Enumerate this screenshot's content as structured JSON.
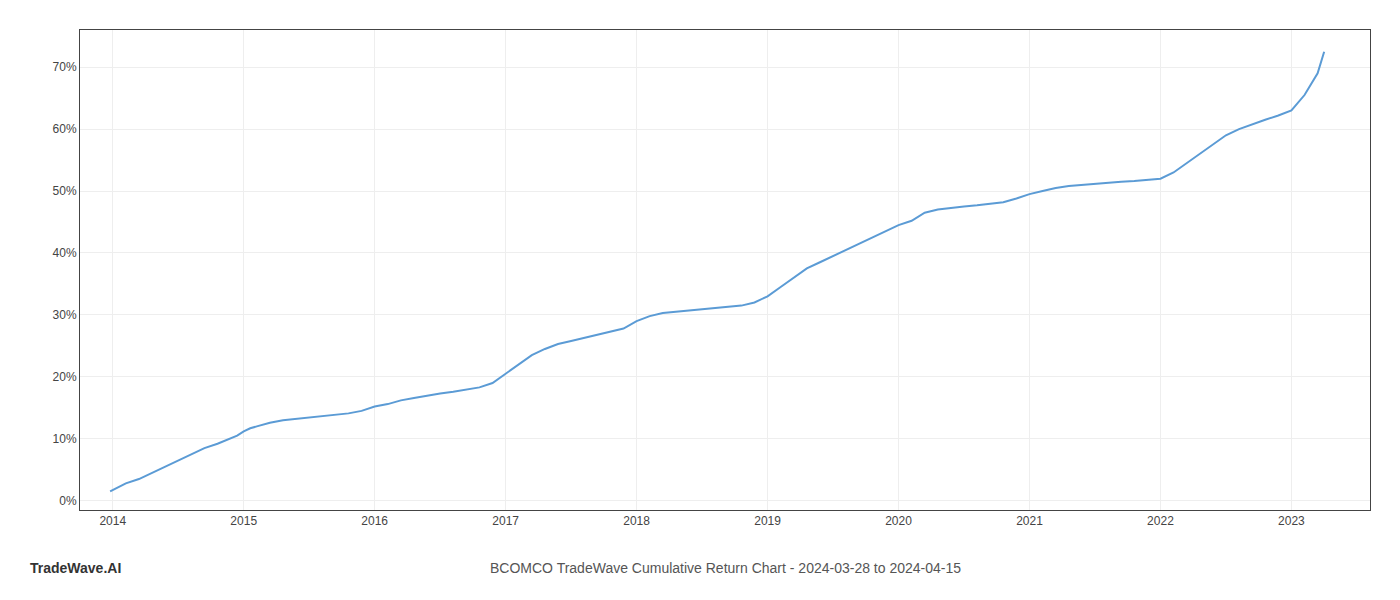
{
  "chart_data": {
    "type": "line",
    "title": "BCOMCO TradeWave Cumulative Return Chart - 2024-03-28 to 2024-04-15",
    "annotations": [
      "TradeWave.AI"
    ],
    "color": "#5b9bd5",
    "grid": true,
    "xlim": [
      2013.75,
      2023.6
    ],
    "xticks": [
      2014,
      2015,
      2016,
      2017,
      2018,
      2019,
      2020,
      2021,
      2022,
      2023
    ],
    "ylim": [
      -1.5,
      76
    ],
    "yticks": [
      {
        "value": 0,
        "label": "0%"
      },
      {
        "value": 10,
        "label": "10%"
      },
      {
        "value": 20,
        "label": "20%"
      },
      {
        "value": 30,
        "label": "30%"
      },
      {
        "value": 40,
        "label": "40%"
      },
      {
        "value": 50,
        "label": "50%"
      },
      {
        "value": 60,
        "label": "60%"
      },
      {
        "value": 70,
        "label": "70%"
      }
    ],
    "x": [
      2013.98,
      2014.05,
      2014.1,
      2014.2,
      2014.3,
      2014.4,
      2014.5,
      2014.6,
      2014.7,
      2014.8,
      2014.9,
      2014.95,
      2015.0,
      2015.05,
      2015.1,
      2015.15,
      2015.2,
      2015.3,
      2015.4,
      2015.5,
      2015.6,
      2015.7,
      2015.8,
      2015.9,
      2015.95,
      2016.0,
      2016.1,
      2016.2,
      2016.3,
      2016.4,
      2016.5,
      2016.6,
      2016.7,
      2016.8,
      2016.9,
      2017.0,
      2017.1,
      2017.2,
      2017.3,
      2017.4,
      2017.5,
      2017.6,
      2017.7,
      2017.8,
      2017.9,
      2018.0,
      2018.1,
      2018.2,
      2018.3,
      2018.4,
      2018.5,
      2018.6,
      2018.7,
      2018.8,
      2018.9,
      2019.0,
      2019.1,
      2019.2,
      2019.3,
      2019.4,
      2019.5,
      2019.6,
      2019.7,
      2019.8,
      2019.9,
      2020.0,
      2020.1,
      2020.2,
      2020.3,
      2020.4,
      2020.5,
      2020.6,
      2020.7,
      2020.8,
      2020.9,
      2021.0,
      2021.1,
      2021.2,
      2021.3,
      2021.4,
      2021.5,
      2021.6,
      2021.7,
      2021.8,
      2021.9,
      2022.0,
      2022.1,
      2022.2,
      2022.3,
      2022.4,
      2022.5,
      2022.6,
      2022.7,
      2022.8,
      2022.9,
      2023.0,
      2023.1,
      2023.2,
      2023.25
    ],
    "values": [
      1.5,
      2.2,
      2.8,
      3.5,
      4.5,
      5.5,
      6.5,
      7.5,
      8.5,
      9.2,
      10.0,
      10.5,
      11.2,
      11.7,
      12.0,
      12.3,
      12.6,
      13.0,
      13.2,
      13.4,
      13.6,
      13.8,
      14.1,
      14.5,
      14.8,
      15.2,
      15.6,
      16.2,
      16.6,
      17.0,
      17.3,
      17.6,
      17.9,
      18.3,
      19.0,
      20.5,
      22.0,
      23.5,
      24.5,
      25.3,
      25.8,
      26.3,
      26.7,
      27.2,
      27.8,
      29.0,
      29.8,
      30.3,
      30.5,
      30.7,
      30.9,
      31.0,
      31.2,
      31.5,
      32.0,
      33.0,
      34.5,
      36.0,
      37.5,
      38.5,
      39.5,
      40.5,
      41.5,
      42.5,
      43.5,
      44.5,
      45.2,
      46.5,
      47.0,
      47.3,
      47.5,
      47.7,
      47.9,
      48.2,
      48.8,
      49.5,
      50.0,
      50.5,
      50.8,
      51.0,
      51.2,
      51.4,
      51.5,
      51.6,
      51.8,
      52.0,
      53.0,
      54.5,
      56.0,
      57.5,
      59.0,
      60.0,
      60.8,
      61.5,
      62.2,
      63.0,
      65.5,
      69.0,
      72.5
    ]
  }
}
